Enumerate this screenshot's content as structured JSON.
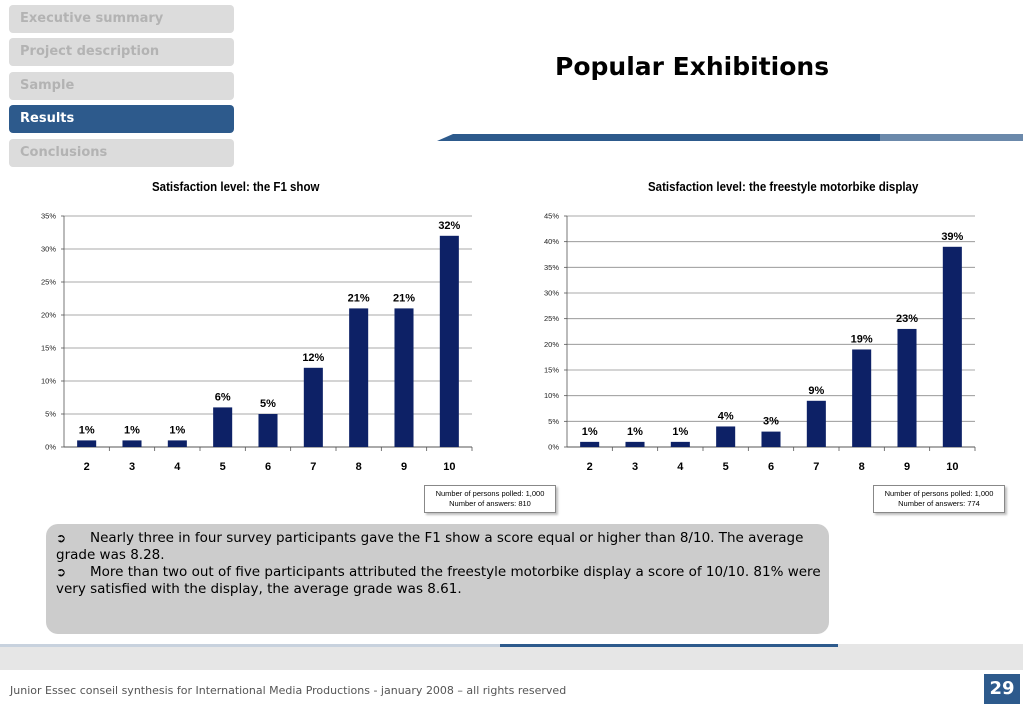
{
  "nav": {
    "items": [
      {
        "label": "Executive summary",
        "active": false
      },
      {
        "label": "Project description",
        "active": false
      },
      {
        "label": "Sample",
        "active": false
      },
      {
        "label": "Results",
        "active": true
      },
      {
        "label": "Conclusions",
        "active": false
      }
    ]
  },
  "page_title": "Popular Exhibitions",
  "colors": {
    "bar": "#0d2166",
    "accent": "#2d5a8c",
    "nav_inactive": "#dcdcdc"
  },
  "chart_data": [
    {
      "type": "bar",
      "title": "Satisfaction level: the F1 show",
      "categories": [
        "2",
        "3",
        "4",
        "5",
        "6",
        "7",
        "8",
        "9",
        "10"
      ],
      "values": [
        1,
        1,
        1,
        6,
        5,
        12,
        21,
        21,
        32
      ],
      "data_labels": [
        "1%",
        "1%",
        "1%",
        "6%",
        "5%",
        "12%",
        "21%",
        "21%",
        "32%"
      ],
      "ylim": [
        0,
        35
      ],
      "yticks": [
        0,
        5,
        10,
        15,
        20,
        25,
        30,
        35
      ],
      "ytick_labels": [
        "0%",
        "5%",
        "10%",
        "15%",
        "20%",
        "25%",
        "30%",
        "35%"
      ],
      "grid": true,
      "note": [
        "Number of persons polled: 1,000",
        "Number of answers: 810"
      ]
    },
    {
      "type": "bar",
      "title": "Satisfaction level: the freestyle motorbike display",
      "categories": [
        "2",
        "3",
        "4",
        "5",
        "6",
        "7",
        "8",
        "9",
        "10"
      ],
      "values": [
        1,
        1,
        1,
        4,
        3,
        9,
        19,
        23,
        39
      ],
      "data_labels": [
        "1%",
        "1%",
        "1%",
        "4%",
        "3%",
        "9%",
        "19%",
        "23%",
        "39%"
      ],
      "ylim": [
        0,
        45
      ],
      "yticks": [
        0,
        5,
        10,
        15,
        20,
        25,
        30,
        35,
        40,
        45
      ],
      "ytick_labels": [
        "0%",
        "5%",
        "10%",
        "15%",
        "20%",
        "25%",
        "30%",
        "35%",
        "40%",
        "45%"
      ],
      "grid": true,
      "note": [
        "Number of persons polled: 1,000",
        "Number of answers: 774"
      ]
    }
  ],
  "summary": {
    "bullets": [
      "Nearly three in four survey participants gave the F1 show a score equal or higher than 8/10. The average grade was 8.28.",
      "More than two out of five participants attributed the freestyle motorbike display a score of 10/10. 81% were very satisfied with the display, the average grade was 8.61."
    ]
  },
  "footer": {
    "text": "Junior Essec conseil synthesis for International Media Productions - january 2008 – all rights reserved",
    "page_number": "29"
  }
}
